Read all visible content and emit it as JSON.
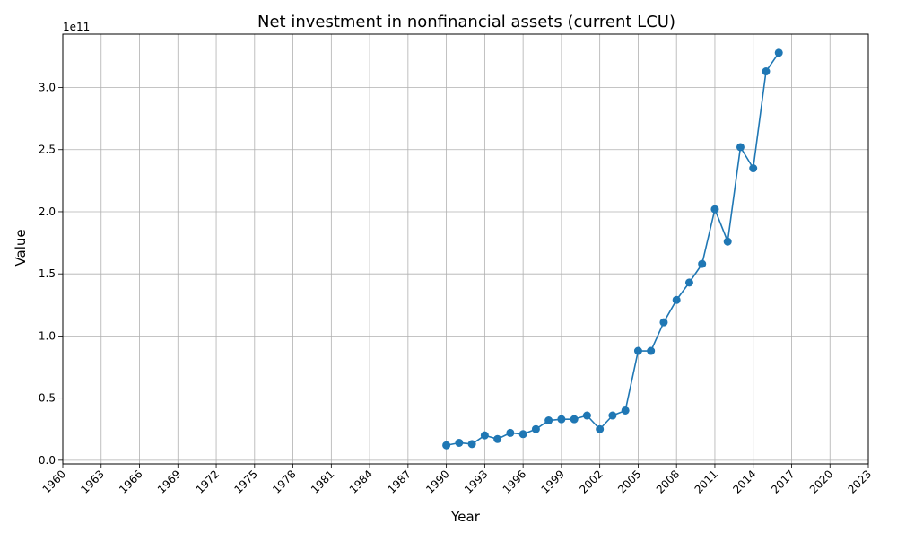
{
  "chart_data": {
    "type": "line",
    "title": "Net investment in nonfinancial assets (current LCU)",
    "xlabel": "Year",
    "ylabel": "Value",
    "y_offset_label": "1e11",
    "y_scale_factor": 100000000000.0,
    "xlim": [
      1960,
      2023
    ],
    "ylim": [
      -0.03,
      3.43
    ],
    "x_ticks": [
      1960,
      1963,
      1966,
      1969,
      1972,
      1975,
      1978,
      1981,
      1984,
      1987,
      1990,
      1993,
      1996,
      1999,
      2002,
      2005,
      2008,
      2011,
      2014,
      2017,
      2020,
      2023
    ],
    "y_ticks": [
      0.0,
      0.5,
      1.0,
      1.5,
      2.0,
      2.5,
      3.0
    ],
    "y_tick_labels": [
      "0.0",
      "0.5",
      "1.0",
      "1.5",
      "2.0",
      "2.5",
      "3.0"
    ],
    "grid": true,
    "line_color": "#1f77b4",
    "marker": "circle",
    "series": [
      {
        "x": [
          1990,
          1991,
          1992,
          1993,
          1994,
          1995,
          1996,
          1997,
          1998,
          1999,
          2000,
          2001,
          2002,
          2003,
          2004,
          2005,
          2006,
          2007,
          2008,
          2009,
          2010,
          2011,
          2012,
          2013,
          2014,
          2015,
          2016
        ],
        "y": [
          0.12,
          0.14,
          0.13,
          0.2,
          0.17,
          0.22,
          0.21,
          0.25,
          0.32,
          0.33,
          0.33,
          0.36,
          0.25,
          0.36,
          0.4,
          0.88,
          0.88,
          1.11,
          1.29,
          1.43,
          1.58,
          2.02,
          1.76,
          2.52,
          2.35,
          3.13,
          3.28
        ]
      }
    ]
  }
}
